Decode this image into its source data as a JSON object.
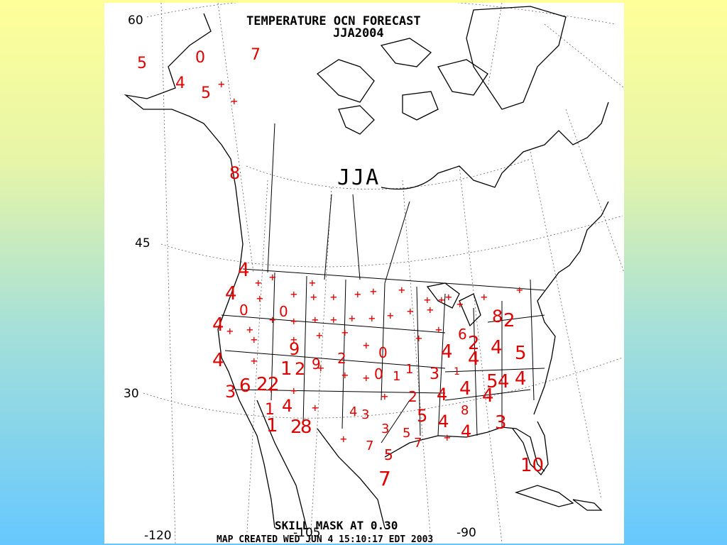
{
  "map": {
    "title": "TEMPERATURE OCN FORECAST",
    "period": "JJA2004",
    "season_label": "JJA",
    "skill_mask": "SKILL MASK AT 0.30",
    "created": "MAP CREATED WED JUN 4 15:10:17 EDT 2003",
    "lat_labels": [
      "60",
      "45",
      "30"
    ],
    "lon_labels": [
      "-120",
      "-105",
      "-90"
    ],
    "colors": {
      "values": "#e00000",
      "plus": "#e00000",
      "highlight": "#00b000",
      "coast": "#000000"
    },
    "values": [
      {
        "t": "5"
      },
      {
        "t": "0"
      },
      {
        "t": "7"
      },
      {
        "t": "4"
      },
      {
        "t": "5"
      },
      {
        "t": "8"
      },
      {
        "t": "4"
      },
      {
        "t": "4"
      },
      {
        "t": "0"
      },
      {
        "t": "0"
      },
      {
        "t": "4"
      },
      {
        "t": "4"
      },
      {
        "t": "9"
      },
      {
        "t": "1"
      },
      {
        "t": "2"
      },
      {
        "t": "9"
      },
      {
        "t": "2"
      },
      {
        "t": "0"
      },
      {
        "t": "0"
      },
      {
        "t": "1"
      },
      {
        "t": "1"
      },
      {
        "t": "3"
      },
      {
        "t": "6"
      },
      {
        "t": "2"
      },
      {
        "t": "2"
      },
      {
        "t": "1"
      },
      {
        "t": "4"
      },
      {
        "t": "1"
      },
      {
        "t": "2"
      },
      {
        "t": "8"
      },
      {
        "t": "4"
      },
      {
        "t": "3"
      },
      {
        "t": "3"
      },
      {
        "t": "5"
      },
      {
        "t": "7"
      },
      {
        "t": "7"
      },
      {
        "t": "5"
      },
      {
        "t": "7"
      },
      {
        "t": "2"
      },
      {
        "t": "5"
      },
      {
        "t": "4"
      },
      {
        "t": "3"
      },
      {
        "t": "4"
      },
      {
        "t": "8"
      },
      {
        "t": "4"
      },
      {
        "t": "4"
      },
      {
        "t": "3"
      },
      {
        "t": "4"
      },
      {
        "t": "10"
      },
      {
        "t": "5"
      },
      {
        "t": "8"
      },
      {
        "t": "2"
      },
      {
        "t": "6"
      },
      {
        "t": "2"
      },
      {
        "t": "4"
      },
      {
        "t": "4"
      },
      {
        "t": "4"
      },
      {
        "t": "5"
      },
      {
        "t": "4"
      },
      {
        "t": "4"
      },
      {
        "t": "1"
      }
    ]
  }
}
